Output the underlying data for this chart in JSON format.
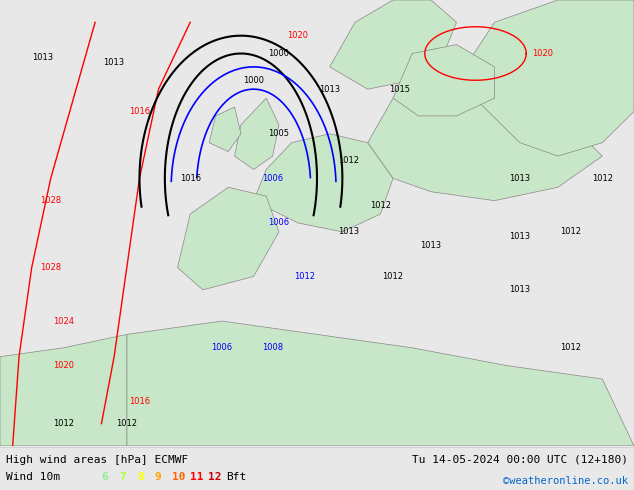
{
  "title_left": "High wind areas [hPa] ECMWF",
  "title_right": "Tu 14-05-2024 00:00 UTC (12+180)",
  "subtitle_left": "Wind 10m",
  "subtitle_right": "©weatheronline.co.uk",
  "bft_labels": [
    "6",
    "7",
    "8",
    "9",
    "10",
    "11",
    "12",
    "Bft"
  ],
  "bft_colors": [
    "#90ee90",
    "#adff2f",
    "#ffff00",
    "#ffa500",
    "#ff6600",
    "#ff0000",
    "#cc0000",
    "#000000"
  ],
  "bg_color": "#e8e8e8",
  "map_bg": "#f0f0f0",
  "fig_width": 6.34,
  "fig_height": 4.9,
  "dpi": 100,
  "bottom_bar_height": 0.08,
  "bottom_bar_color": "#ffffff",
  "land_color_light": "#c8e6c8",
  "land_color_mid": "#a8d8a8",
  "sea_color": "#e0e8f0",
  "contour_red": "#ff0000",
  "contour_black": "#000000",
  "contour_blue": "#0000ff",
  "font_color_main": "#000000",
  "font_color_link": "#0066cc"
}
